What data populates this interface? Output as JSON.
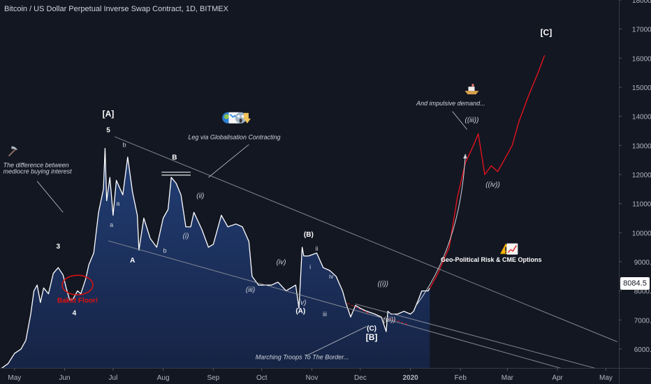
{
  "chart_title": "Bitcoin / US Dollar Perpetual Inverse Swap Contract, 1D, BITMEX",
  "last_price": "8084.5",
  "colors": {
    "background": "#131722",
    "price_line": "#ffffff",
    "area_top": "#23407a",
    "area_bottom": "#162446",
    "projection": "#e0141e",
    "channel": "#9598a1",
    "axis_text": "#b2b5be",
    "label_red": "#e01010"
  },
  "chart_data": {
    "type": "line",
    "title": "Bitcoin / US Dollar Perpetual Inverse Swap Contract, 1D, BITMEX",
    "ylim": [
      5350,
      18000
    ],
    "xlim": [
      "2019-04-22",
      "2020-05-09"
    ],
    "y_ticks": [
      "6000.0",
      "7000.0",
      "8000.0",
      "9000.0",
      "10000.0",
      "11000.0",
      "12000.0",
      "13000.0",
      "14000.0",
      "15000.0",
      "16000.0",
      "17000.0",
      "18000.0"
    ],
    "x_ticks": [
      {
        "label": "May",
        "date": "2019-05-01"
      },
      {
        "label": "Jun",
        "date": "2019-06-01"
      },
      {
        "label": "Jul",
        "date": "2019-07-01"
      },
      {
        "label": "Aug",
        "date": "2019-08-01"
      },
      {
        "label": "Sep",
        "date": "2019-09-01"
      },
      {
        "label": "Oct",
        "date": "2019-10-01"
      },
      {
        "label": "Nov",
        "date": "2019-11-01"
      },
      {
        "label": "Dec",
        "date": "2019-12-01"
      },
      {
        "label": "2020",
        "date": "2020-01-01"
      },
      {
        "label": "Feb",
        "date": "2020-02-01"
      },
      {
        "label": "Mar",
        "date": "2020-03-01"
      },
      {
        "label": "Apr",
        "date": "2020-04-01"
      },
      {
        "label": "May",
        "date": "2020-05-01"
      }
    ],
    "series": [
      {
        "style": "area",
        "x": [
          "2019-04-22",
          "2019-04-27",
          "2019-05-01",
          "2019-05-05",
          "2019-05-08",
          "2019-05-11",
          "2019-05-13",
          "2019-05-15",
          "2019-05-17",
          "2019-05-19",
          "2019-05-22",
          "2019-05-25",
          "2019-05-28",
          "2019-05-31",
          "2019-06-02",
          "2019-06-04",
          "2019-06-06",
          "2019-06-09",
          "2019-06-11",
          "2019-06-14",
          "2019-06-16",
          "2019-06-19",
          "2019-06-22",
          "2019-06-25",
          "2019-06-26",
          "2019-06-27",
          "2019-06-29",
          "2019-07-01",
          "2019-07-03",
          "2019-07-07",
          "2019-07-10",
          "2019-07-13",
          "2019-07-16",
          "2019-07-17",
          "2019-07-20",
          "2019-07-24",
          "2019-07-28",
          "2019-08-01",
          "2019-08-04",
          "2019-08-06",
          "2019-08-09",
          "2019-08-12",
          "2019-08-15",
          "2019-08-18",
          "2019-08-20",
          "2019-08-25",
          "2019-08-29",
          "2019-09-01",
          "2019-09-06",
          "2019-09-10",
          "2019-09-15",
          "2019-09-19",
          "2019-09-23",
          "2019-09-25",
          "2019-09-29",
          "2019-10-03",
          "2019-10-07",
          "2019-10-11",
          "2019-10-16",
          "2019-10-22",
          "2019-10-24",
          "2019-10-26",
          "2019-10-27",
          "2019-10-30",
          "2019-11-04",
          "2019-11-08",
          "2019-11-12",
          "2019-11-16",
          "2019-11-20",
          "2019-11-22",
          "2019-11-25",
          "2019-11-28",
          "2019-12-01",
          "2019-12-05",
          "2019-12-10",
          "2019-12-14",
          "2019-12-17",
          "2019-12-18",
          "2019-12-20",
          "2019-12-24",
          "2019-12-28",
          "2020-01-01",
          "2020-01-03",
          "2020-01-06",
          "2020-01-08",
          "2020-01-12",
          "2020-01-13"
        ],
        "values": [
          5300,
          5500,
          5850,
          6000,
          6300,
          7200,
          8000,
          8200,
          7600,
          8100,
          7900,
          8600,
          8800,
          8550,
          8100,
          7700,
          7700,
          8000,
          7900,
          8400,
          8900,
          9300,
          10700,
          11500,
          12900,
          11100,
          11900,
          10600,
          11800,
          11300,
          12600,
          11400,
          10600,
          9400,
          10500,
          9800,
          9500,
          10500,
          10800,
          11900,
          11700,
          11300,
          10200,
          10200,
          10700,
          10100,
          9500,
          9600,
          10600,
          10200,
          10300,
          10200,
          9700,
          8500,
          8200,
          8200,
          8200,
          8300,
          8000,
          8200,
          7400,
          9500,
          9200,
          9200,
          9300,
          8800,
          8700,
          8500,
          8000,
          7600,
          7100,
          7500,
          7400,
          7300,
          7200,
          7100,
          6600,
          7300,
          7200,
          7200,
          7300,
          7200,
          7300,
          7700,
          8000,
          8000,
          8100
        ]
      },
      {
        "style": "projection",
        "x": [
          "2020-01-13",
          "2020-01-18",
          "2020-01-25",
          "2020-01-30",
          "2020-02-04",
          "2020-02-09",
          "2020-02-12",
          "2020-02-16",
          "2020-02-20",
          "2020-02-24",
          "2020-02-28",
          "2020-03-04",
          "2020-03-08",
          "2020-03-14",
          "2020-03-20",
          "2020-03-24"
        ],
        "values": [
          8084,
          8600,
          9500,
          11200,
          12400,
          13000,
          13400,
          12000,
          12300,
          12100,
          12500,
          13000,
          13800,
          14700,
          15500,
          16100
        ]
      }
    ],
    "annotations": [
      {
        "text": "[A]",
        "date": "2019-06-28",
        "price": 13990,
        "style": "wave-major"
      },
      {
        "text": "5",
        "date": "2019-06-28",
        "price": 13450,
        "style": "wave"
      },
      {
        "text": "b",
        "date": "2019-07-08",
        "price": 12950,
        "style": "wave-minor"
      },
      {
        "text": "a",
        "date": "2019-07-04",
        "price": 10930,
        "style": "wave-minor"
      },
      {
        "text": "a",
        "date": "2019-06-30",
        "price": 10200,
        "style": "wave-minor"
      },
      {
        "text": "A",
        "date": "2019-07-13",
        "price": 8970,
        "style": "wave"
      },
      {
        "text": "b",
        "date": "2019-08-02",
        "price": 9310,
        "style": "wave-minor"
      },
      {
        "text": "B",
        "date": "2019-08-08",
        "price": 12510,
        "style": "wave"
      },
      {
        "text": "(i)",
        "date": "2019-08-15",
        "price": 9820,
        "style": "wave-italic"
      },
      {
        "text": "(ii)",
        "date": "2019-08-24",
        "price": 11190,
        "style": "wave-italic"
      },
      {
        "text": "3",
        "date": "2019-05-28",
        "price": 9450,
        "style": "wave"
      },
      {
        "text": "4",
        "date": "2019-06-07",
        "price": 7160,
        "style": "wave"
      },
      {
        "text": "(iii)",
        "date": "2019-09-24",
        "price": 7970,
        "style": "wave-italic"
      },
      {
        "text": "(iv)",
        "date": "2019-10-13",
        "price": 8910,
        "style": "wave-italic"
      },
      {
        "text": "(v)",
        "date": "2019-10-26",
        "price": 7520,
        "style": "wave-italic"
      },
      {
        "text": "(A)",
        "date": "2019-10-25",
        "price": 7240,
        "style": "wave"
      },
      {
        "text": "(B)",
        "date": "2019-10-30",
        "price": 9860,
        "style": "wave"
      },
      {
        "text": "ii",
        "date": "2019-11-04",
        "price": 9380,
        "style": "wave-minor"
      },
      {
        "text": "i",
        "date": "2019-10-31",
        "price": 8750,
        "style": "wave-minor"
      },
      {
        "text": "iv",
        "date": "2019-11-13",
        "price": 8420,
        "style": "wave-minor"
      },
      {
        "text": "iii",
        "date": "2019-11-09",
        "price": 7130,
        "style": "wave-minor"
      },
      {
        "text": "((i))",
        "date": "2019-12-15",
        "price": 8170,
        "style": "wave-italic"
      },
      {
        "text": "((ii))",
        "date": "2019-12-19",
        "price": 6940,
        "style": "wave-italic"
      },
      {
        "text": "(C)",
        "date": "2019-12-08",
        "price": 6630,
        "style": "wave"
      },
      {
        "text": "[B]",
        "date": "2019-12-08",
        "price": 6310,
        "style": "wave-major"
      },
      {
        "text": "((iii))",
        "date": "2020-02-08",
        "price": 13800,
        "style": "wave-italic"
      },
      {
        "text": "((iv))",
        "date": "2020-02-21",
        "price": 11580,
        "style": "wave-italic"
      },
      {
        "text": "[C]",
        "date": "2020-03-25",
        "price": 16790,
        "style": "wave-major"
      },
      {
        "text": "Bakkt Floor!",
        "date": "2019-06-09",
        "price": 7600,
        "style": "red"
      },
      {
        "text": "The difference between",
        "date": "2019-04-24",
        "price": 12250,
        "style": "note"
      },
      {
        "text": "mediocre buying interest",
        "date": "2019-04-24",
        "price": 12040,
        "style": "note"
      },
      {
        "text": "Leg via Globalisation Contracting",
        "date": "2019-09-14",
        "price": 13210,
        "style": "note"
      },
      {
        "text": "And impulsive demand...",
        "date": "2020-01-26",
        "price": 14380,
        "style": "note"
      },
      {
        "text": "Geo-Political Risk & CME Options",
        "date": "2020-02-20",
        "price": 9000,
        "style": "note-bold"
      },
      {
        "text": "Marching Troops To The Border...",
        "date": "2019-10-26",
        "price": 5650,
        "style": "note"
      }
    ],
    "lines": [
      {
        "kind": "channel",
        "from": {
          "date": "2019-07-02",
          "price": 13300
        },
        "to": {
          "date": "2020-05-08",
          "price": 6250
        }
      },
      {
        "kind": "channel",
        "from": {
          "date": "2019-06-28",
          "price": 9720
        },
        "to": {
          "date": "2020-04-26",
          "price": 4980
        }
      },
      {
        "kind": "channel",
        "from": {
          "date": "2019-11-28",
          "price": 7550
        },
        "to": {
          "date": "2020-04-27",
          "price": 5300
        }
      },
      {
        "kind": "pointer",
        "from": {
          "date": "2019-08-29",
          "price": 11900
        },
        "to": {
          "date": "2019-09-23",
          "price": 13030
        }
      },
      {
        "kind": "pointer",
        "from": {
          "date": "2019-05-15",
          "price": 11770
        },
        "to": {
          "date": "2019-05-31",
          "price": 10700
        }
      },
      {
        "kind": "pointer",
        "from": {
          "date": "2019-10-29",
          "price": 5780
        },
        "to": {
          "date": "2019-12-05",
          "price": 6780
        }
      },
      {
        "kind": "pointer",
        "from": {
          "date": "2020-01-27",
          "price": 14170
        },
        "to": {
          "date": "2020-02-05",
          "price": 13550
        }
      },
      {
        "kind": "arrow",
        "from": {
          "date": "2020-01-05",
          "price": 7530
        },
        "to": {
          "date": "2020-02-04",
          "price": 12700
        }
      },
      {
        "kind": "top-marker",
        "from": {
          "date": "2019-07-31",
          "price": 12080
        },
        "to": {
          "date": "2019-08-18",
          "price": 12080
        }
      },
      {
        "kind": "top-marker",
        "from": {
          "date": "2019-07-31",
          "price": 11980
        },
        "to": {
          "date": "2019-08-18",
          "price": 11980
        }
      },
      {
        "kind": "red-dashed",
        "from": {
          "date": "2019-11-23",
          "price": 7570
        },
        "to": {
          "date": "2019-12-06",
          "price": 7240
        }
      },
      {
        "kind": "red-dashed",
        "from": {
          "date": "2019-12-19",
          "price": 7060
        },
        "to": {
          "date": "2019-12-30",
          "price": 6850
        }
      }
    ],
    "icons": [
      {
        "name": "earth-icon",
        "date": "2019-09-10",
        "price": 13950
      },
      {
        "name": "chart-decreasing-icon",
        "date": "2019-09-14",
        "price": 13950
      },
      {
        "name": "face-screaming-icon",
        "date": "2019-09-18",
        "price": 13950
      },
      {
        "name": "pointing-down-icon",
        "date": "2019-09-22",
        "price": 13950
      },
      {
        "name": "pickaxe-icon",
        "date": "2019-04-30",
        "price": 12780
      },
      {
        "name": "ship-icon",
        "date": "2020-02-08",
        "price": 14900
      },
      {
        "name": "warning-icon",
        "date": "2020-02-29",
        "price": 9440
      },
      {
        "name": "chart-increasing-icon",
        "date": "2020-03-04",
        "price": 9440
      }
    ],
    "circle": {
      "date": "2019-06-09",
      "price": 8200
    }
  }
}
